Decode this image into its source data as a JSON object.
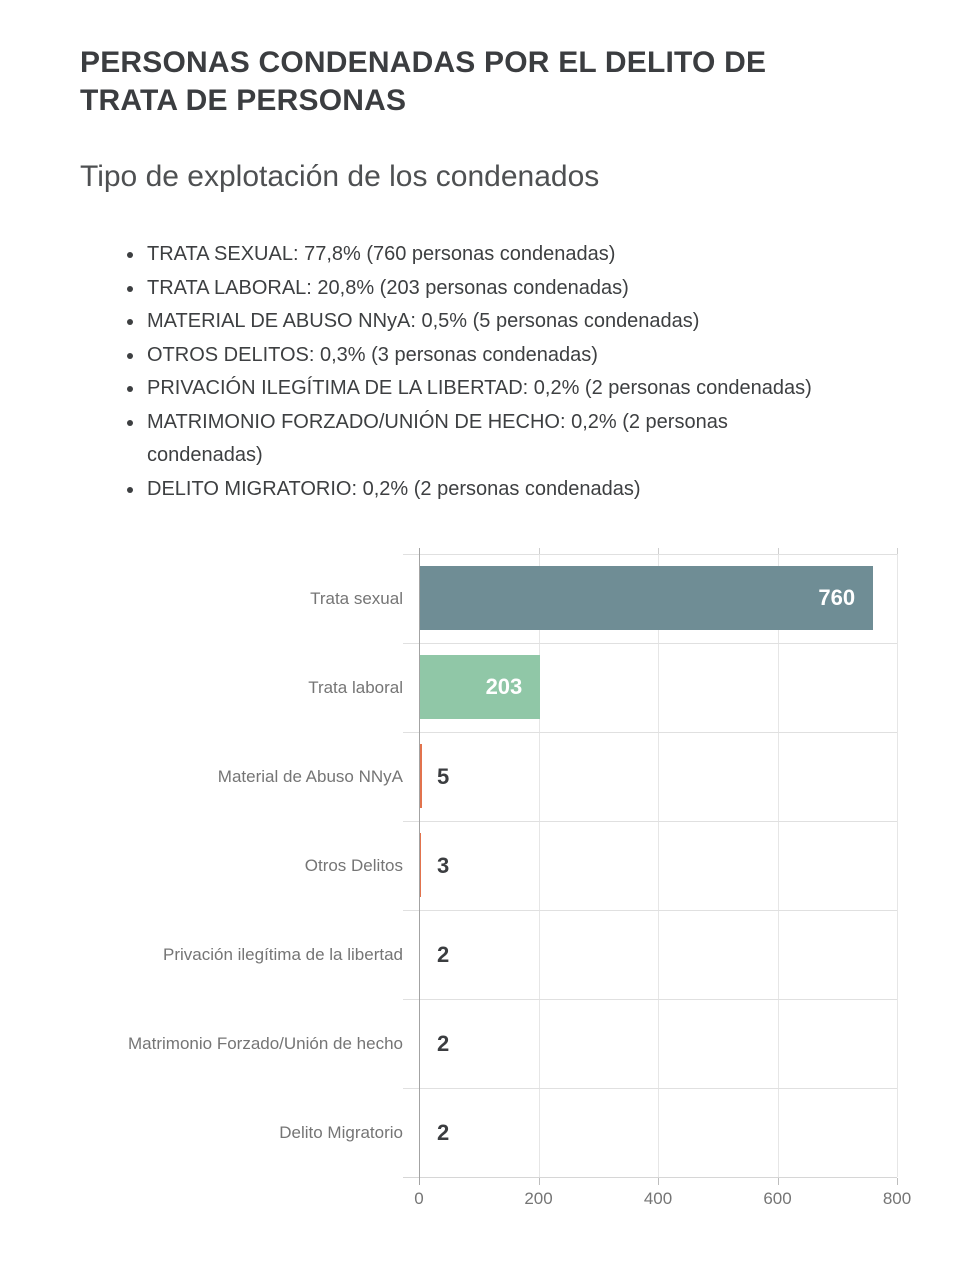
{
  "page": {
    "title": "PERSONAS CONDENADAS POR EL DELITO DE TRATA DE PERSONAS",
    "subtitle": "Tipo de explotación de los condenados"
  },
  "summary_list": {
    "items": [
      "TRATA SEXUAL: 77,8% (760 personas condenadas)",
      "TRATA LABORAL: 20,8% (203 personas condenadas)",
      "MATERIAL DE ABUSO NNyA: 0,5% (5 personas condenadas)",
      "OTROS DELITOS: 0,3% (3 personas condenadas)",
      "PRIVACIÓN ILEGÍTIMA DE LA LIBERTAD: 0,2% (2 personas condenadas)",
      "MATRIMONIO FORZADO/UNIÓN DE HECHO: 0,2% (2 personas\ncondenadas)",
      "DELITO MIGRATORIO: 0,2% (2 personas condenadas)"
    ]
  },
  "chart_data": {
    "type": "bar",
    "orientation": "horizontal",
    "categories": [
      "Trata sexual",
      "Trata laboral",
      "Material de Abuso NNyA",
      "Otros Delitos",
      "Privación ilegítima de la libertad",
      "Matrimonio Forzado/Unión de hecho",
      "Delito Migratorio"
    ],
    "values": [
      760,
      203,
      5,
      3,
      2,
      2,
      2
    ],
    "value_labels": [
      "760",
      "203",
      "5",
      "3",
      "2",
      "2",
      "2"
    ],
    "bar_colors": [
      "#6f8d95",
      "#90c7a7",
      "#e2734d",
      "#e2734d",
      "#e2734d",
      "#e2734d",
      "#e2734d"
    ],
    "xlabel": "",
    "ylabel": "",
    "xlim": [
      0,
      800
    ],
    "x_ticks": [
      0,
      200,
      400,
      600,
      800
    ],
    "x_tick_labels": [
      "0",
      "200",
      "400",
      "600",
      "800"
    ],
    "grid": true,
    "legend": false,
    "colors": {
      "label_inside": "#ffffff",
      "label_outside": "#3b3d40",
      "category_text": "#757575",
      "gridline": "#e6e6e6",
      "row_separator": "#e0e0e0",
      "zero_axis": "#a3a3a3"
    }
  }
}
